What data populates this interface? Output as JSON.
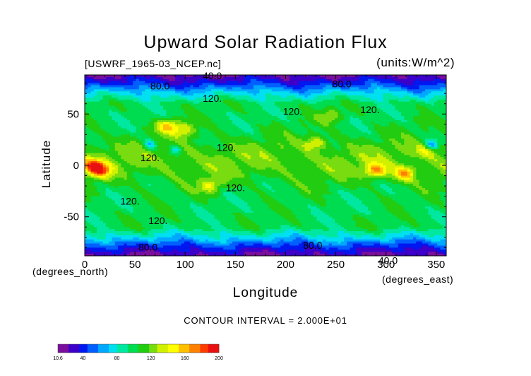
{
  "chart_data": {
    "type": "heatmap",
    "title": "Upward Solar Radiation Flux",
    "subtitle_left": "[USWRF_1965-03_NCEP.nc]",
    "subtitle_right": "(units:W/m^2)",
    "xlabel": "Longitude",
    "ylabel": "Latitude",
    "x_unit_label_left": "(degrees_north)",
    "x_unit_label_right": "(degrees_east)",
    "xlim": [
      0,
      360
    ],
    "ylim": [
      -88,
      88
    ],
    "x_ticks": [
      0,
      50,
      100,
      150,
      200,
      250,
      300,
      350
    ],
    "y_ticks": [
      -50,
      0,
      50
    ],
    "footer": "CONTOUR INTERVAL = 2.000E+01",
    "contour_interval": 20,
    "colorbar": {
      "min": 10.6,
      "max": 200,
      "tick_labels": [
        "10.6",
        "40",
        "80",
        "120",
        "160",
        "200"
      ],
      "tick_values": [
        10.6,
        40,
        80,
        120,
        160,
        200
      ],
      "colors": [
        "#7a0f9c",
        "#3c00c8",
        "#0018f0",
        "#0060ff",
        "#00a8ff",
        "#00e0f0",
        "#00e8a0",
        "#00dc50",
        "#22cc10",
        "#78dc10",
        "#d0f000",
        "#ffff00",
        "#ffc000",
        "#ff8000",
        "#ff3c00",
        "#e81010"
      ]
    },
    "contour_labels": [
      {
        "text": "40.0",
        "lon": 127,
        "lat": 84
      },
      {
        "text": "80.0",
        "lon": 75,
        "lat": 74
      },
      {
        "text": "80.0",
        "lon": 256,
        "lat": 76
      },
      {
        "text": "120.",
        "lon": 127,
        "lat": 62
      },
      {
        "text": "120.",
        "lon": 207,
        "lat": 49
      },
      {
        "text": "120.",
        "lon": 284,
        "lat": 51
      },
      {
        "text": "120.",
        "lon": 141,
        "lat": 14
      },
      {
        "text": "120.",
        "lon": 65,
        "lat": 4
      },
      {
        "text": "120.",
        "lon": 150,
        "lat": -25
      },
      {
        "text": "120.",
        "lon": 45,
        "lat": -38
      },
      {
        "text": "120.",
        "lon": 73,
        "lat": -57
      },
      {
        "text": "80.0",
        "lon": 63,
        "lat": -83
      },
      {
        "text": "80.0",
        "lon": 227,
        "lat": -81
      },
      {
        "text": "40.0",
        "lon": 302,
        "lat": -96
      }
    ],
    "field": {
      "description_values_in_W_per_m2": true,
      "hotspots": [
        {
          "lon": 15,
          "lat": -5,
          "value": 175
        },
        {
          "lon": 7,
          "lat": 0,
          "value": 165
        },
        {
          "lon": 83,
          "lat": 38,
          "value": 165
        },
        {
          "lon": 100,
          "lat": 34,
          "value": 150
        },
        {
          "lon": 125,
          "lat": -20,
          "value": 150
        },
        {
          "lon": 290,
          "lat": -5,
          "value": 170
        },
        {
          "lon": 318,
          "lat": -8,
          "value": 165
        },
        {
          "lon": 230,
          "lat": 22,
          "value": 150
        },
        {
          "lon": 245,
          "lat": 48,
          "value": 145
        },
        {
          "lon": 340,
          "lat": 15,
          "value": 140
        }
      ],
      "coldspots": [
        {
          "lon": 345,
          "lat": 20,
          "value": 60
        },
        {
          "lon": 65,
          "lat": 20,
          "value": 75
        },
        {
          "lon": 90,
          "lat": 15,
          "value": 80
        }
      ]
    }
  }
}
